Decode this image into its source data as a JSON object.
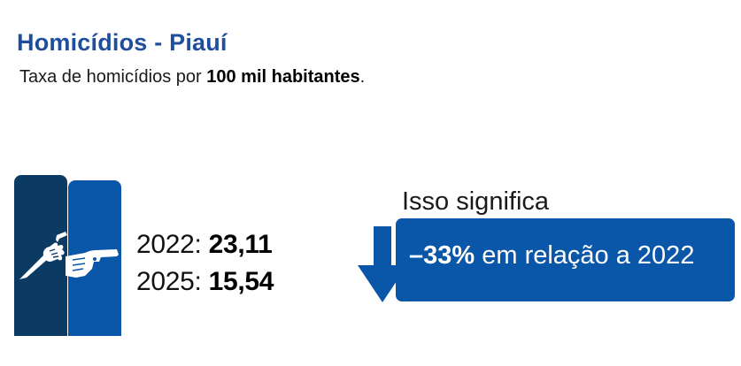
{
  "header": {
    "title": "Homicídios - Piauí",
    "subtitle_prefix": "Taxa de homicídios por ",
    "subtitle_bold": "100 mil habitantes",
    "subtitle_suffix": "."
  },
  "chart_data": {
    "type": "bar",
    "categories": [
      "2022",
      "2025"
    ],
    "values": [
      23.11,
      15.54
    ],
    "value_labels": [
      "23,11",
      "15,54"
    ],
    "title": "Homicídios - Piauí",
    "ylabel": "Taxa de homicídios por 100 mil habitantes"
  },
  "stats": [
    {
      "year_label": "2022: ",
      "value": "23,11"
    },
    {
      "year_label": "2025: ",
      "value": "15,54"
    }
  ],
  "comparison": {
    "intro": "Isso significa",
    "percent": "–33%",
    "rest": " em relação a 2022"
  },
  "icons": [
    "knife-hand-icon",
    "gun-hand-icon",
    "down-arrow-icon"
  ],
  "colors": {
    "title": "#1f4e9c",
    "bar_dark": "#0b3a63",
    "bar_blue": "#0a56a8",
    "result_box": "#0a56a8"
  }
}
